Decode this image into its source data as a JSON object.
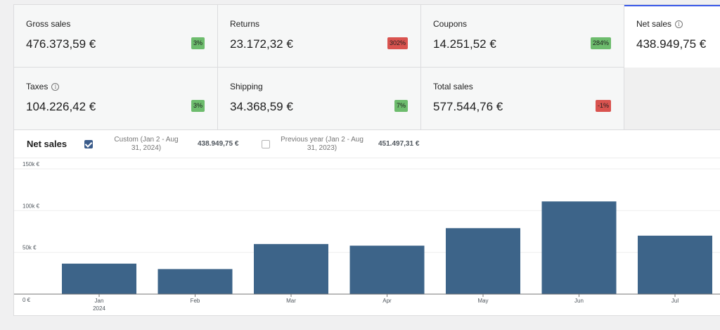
{
  "stats": [
    {
      "label": "Gross sales",
      "value": "476.373,59 €",
      "delta": "3%",
      "trend": "up",
      "info": false
    },
    {
      "label": "Returns",
      "value": "23.172,32 €",
      "delta": "302%",
      "trend": "down",
      "info": false
    },
    {
      "label": "Coupons",
      "value": "14.251,52 €",
      "delta": "284%",
      "trend": "up",
      "info": false
    },
    {
      "label": "Net sales",
      "value": "438.949,75 €",
      "delta": "",
      "trend": "",
      "info": true,
      "selected": true
    },
    {
      "label": "Taxes",
      "value": "104.226,42 €",
      "delta": "3%",
      "trend": "up",
      "info": true
    },
    {
      "label": "Shipping",
      "value": "34.368,59 €",
      "delta": "7%",
      "trend": "up",
      "info": false
    },
    {
      "label": "Total sales",
      "value": "577.544,76 €",
      "delta": "-1%",
      "trend": "down",
      "info": false
    }
  ],
  "colors": {
    "up": "#6dbc6d",
    "down": "#d9534f",
    "bar": "#3d6489",
    "accent": "#3858e9"
  },
  "chart_header": {
    "title": "Net sales",
    "current": {
      "label_line1": "Custom (Jan 2 - Aug",
      "label_line2": "31, 2024)",
      "value": "438.949,75 €",
      "checked": true
    },
    "previous": {
      "label_line1": "Previous year (Jan 2 - Aug",
      "label_line2": "31, 2023)",
      "value": "451.497,31 €",
      "checked": false
    }
  },
  "chart_data": {
    "type": "bar",
    "categories": [
      "Jan",
      "Feb",
      "Mar",
      "Apr",
      "May",
      "Jun",
      "Jul"
    ],
    "x_sublabel": "2024",
    "series": [
      {
        "name": "Custom (Jan 2 - Aug 31, 2024)",
        "values": [
          36500,
          30000,
          60000,
          58000,
          79000,
          111000,
          70000
        ]
      }
    ],
    "y_ticks": [
      0,
      50000,
      100000,
      150000
    ],
    "y_tick_labels": [
      "0 €",
      "50k €",
      "100k €",
      "150k €"
    ],
    "ylim": [
      0,
      150000
    ],
    "grid": true
  }
}
